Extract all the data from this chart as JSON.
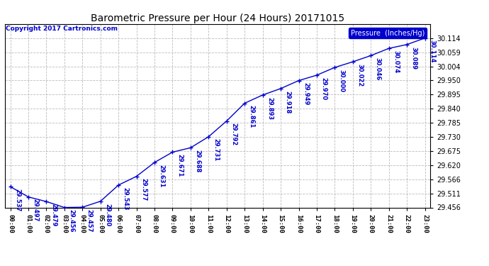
{
  "title": "Barometric Pressure per Hour (24 Hours) 20171015",
  "copyright": "Copyright 2017 Cartronics.com",
  "legend_label": "Pressure  (Inches/Hg)",
  "hours": [
    0,
    1,
    2,
    3,
    4,
    5,
    6,
    7,
    8,
    9,
    10,
    11,
    12,
    13,
    14,
    15,
    16,
    17,
    18,
    19,
    20,
    21,
    22,
    23
  ],
  "pressures": [
    29.537,
    29.497,
    29.479,
    29.456,
    29.457,
    29.48,
    29.543,
    29.577,
    29.631,
    29.671,
    29.688,
    29.731,
    29.792,
    29.861,
    29.893,
    29.918,
    29.949,
    29.97,
    30.0,
    30.022,
    30.046,
    30.074,
    30.089,
    30.114
  ],
  "ylim_min": 29.456,
  "ylim_max": 30.169,
  "yticks": [
    29.456,
    29.511,
    29.566,
    29.62,
    29.675,
    29.73,
    29.785,
    29.84,
    29.895,
    29.95,
    30.004,
    30.059,
    30.114
  ],
  "line_color": "#0000cc",
  "marker_color": "#0000cc",
  "bg_color": "#ffffff",
  "grid_color": "#aaaaaa",
  "title_color": "#000000",
  "label_color": "#0000cc",
  "copyright_color": "#0000cc",
  "legend_bg": "#0000cc",
  "legend_text_color": "#ffffff"
}
